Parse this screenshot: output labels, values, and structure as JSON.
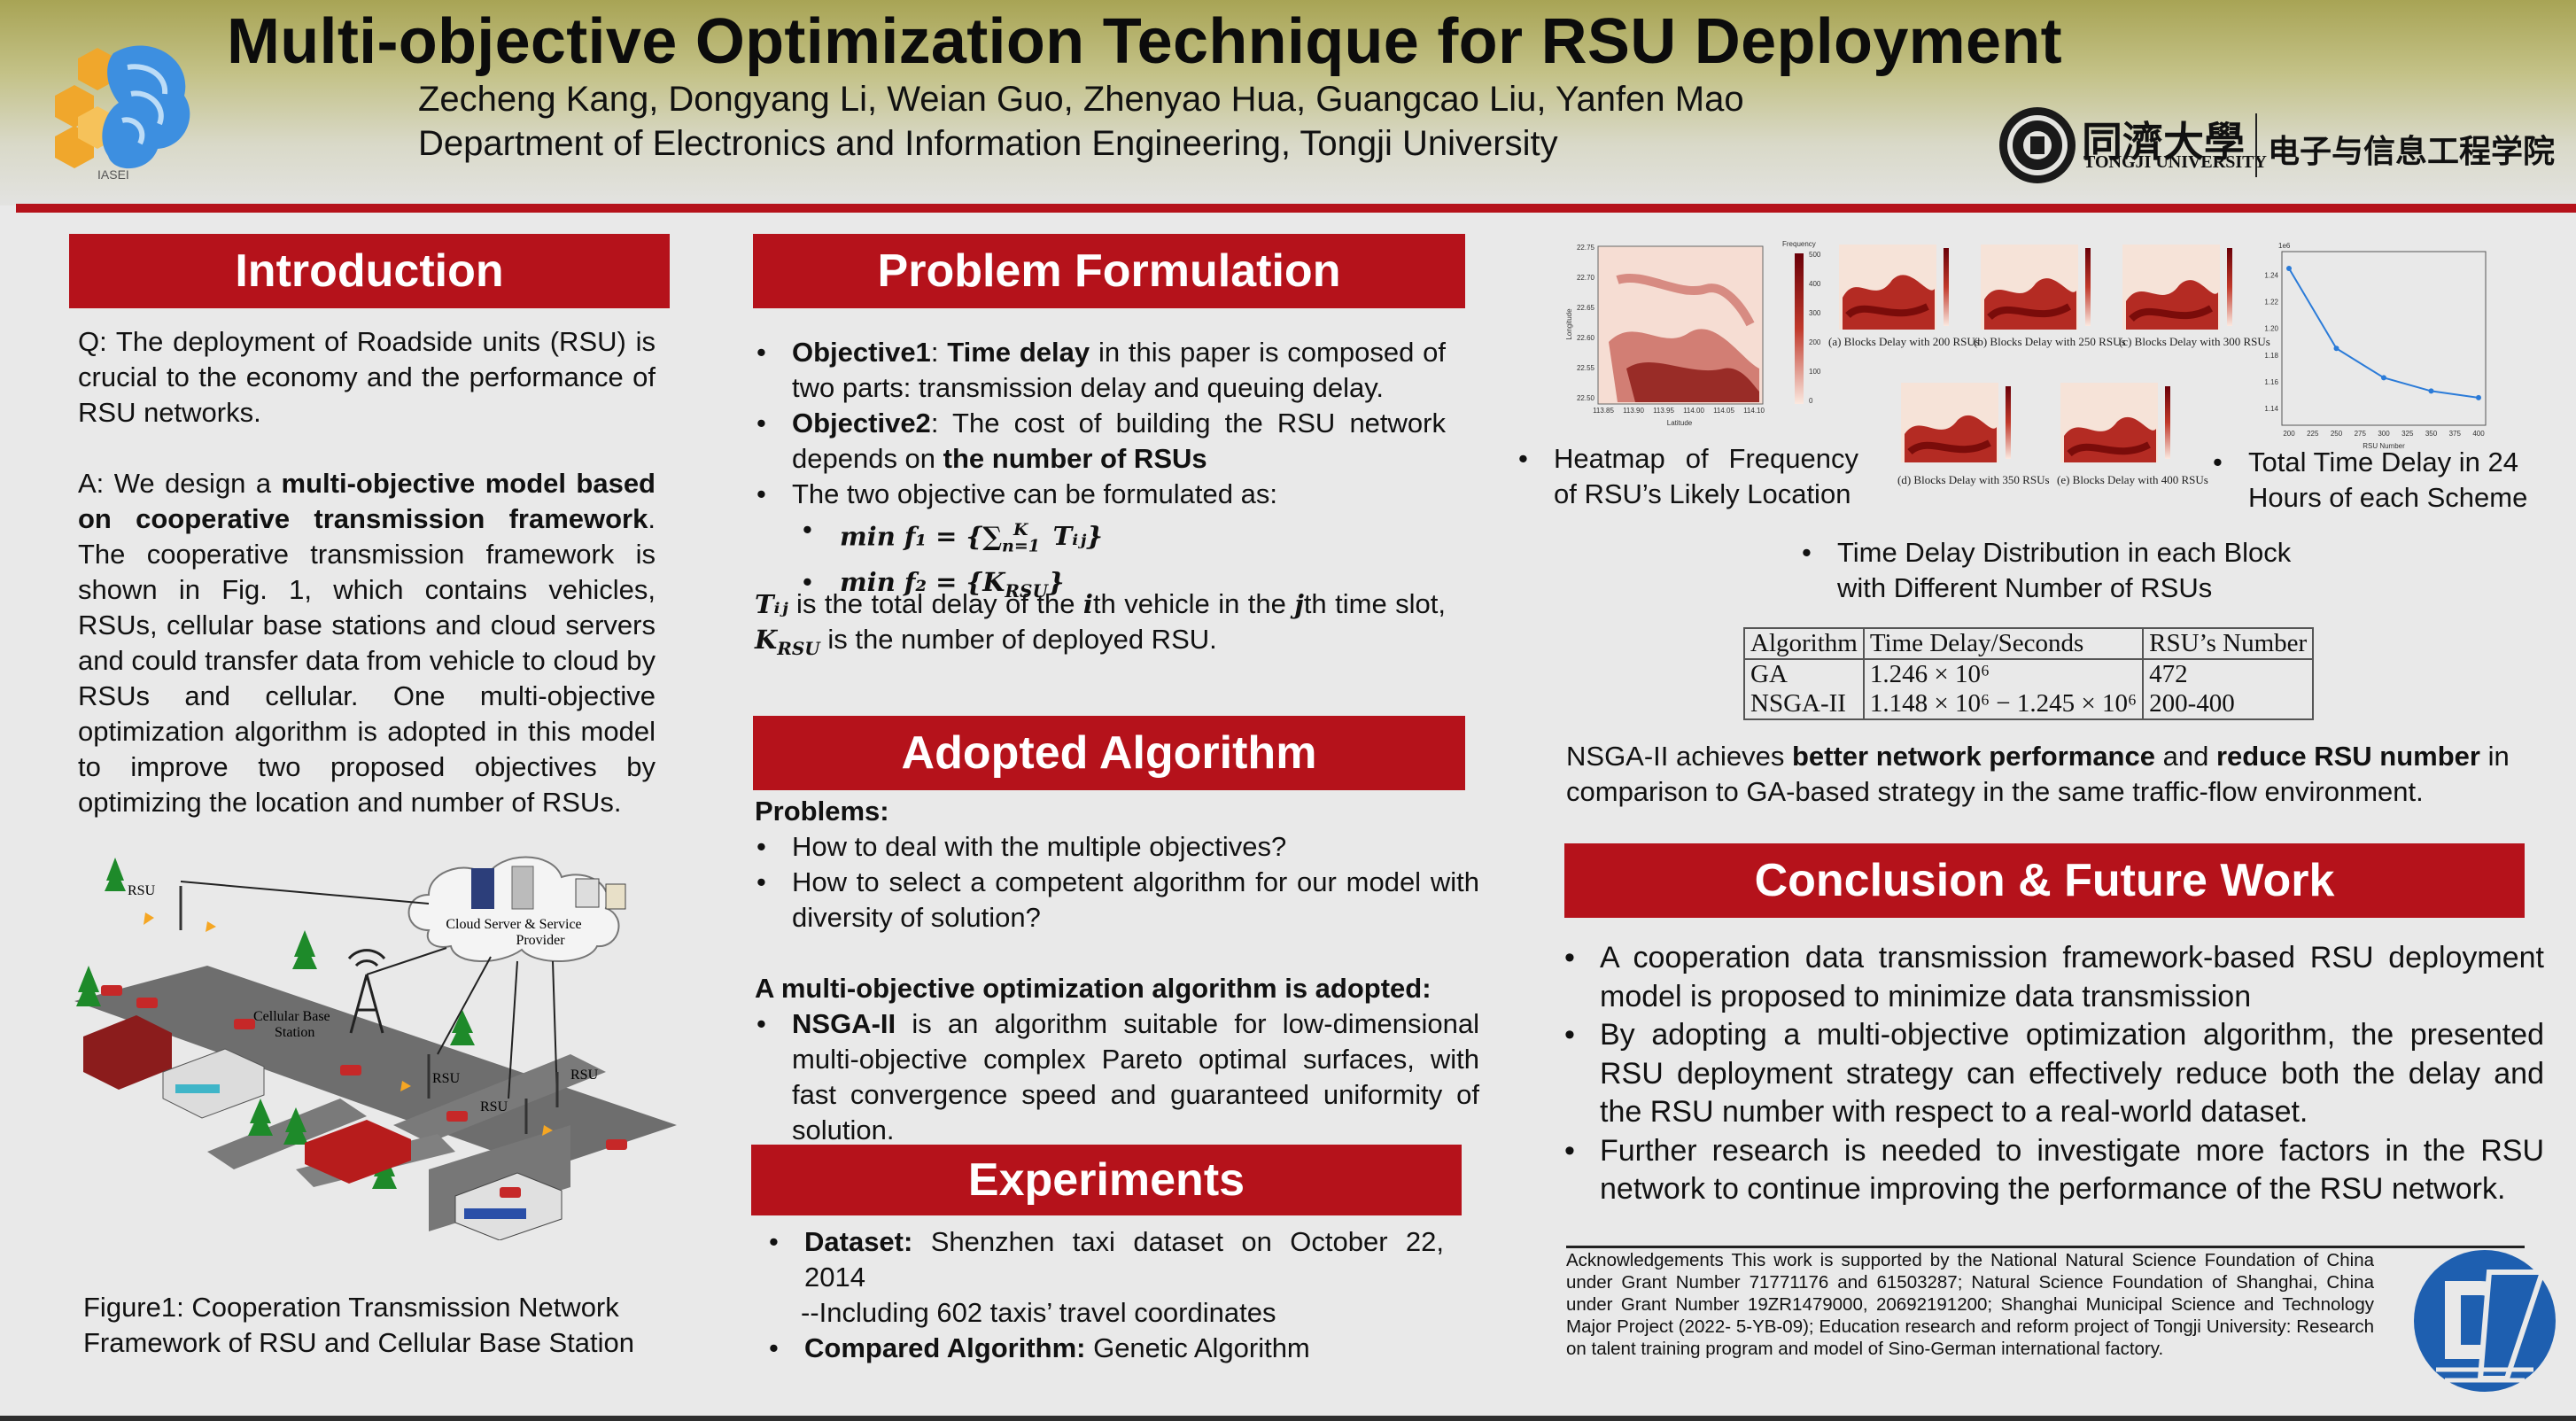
{
  "header": {
    "title": "Multi-objective Optimization Technique for RSU Deployment",
    "authors": "Zecheng Kang, Dongyang Li, Weian Guo, Zhenyao Hua, Guangcao Liu, Yanfen Mao",
    "department": "Department of Electronics and Information Engineering, Tongji University",
    "left_logo_text": "IASEI",
    "tongji_cn": "同濟大學",
    "tongji_en": "TONGJI UNIVERSITY",
    "school_cn": "电子与信息工程学院"
  },
  "introduction": {
    "heading": "Introduction",
    "q": "Q: The deployment of Roadside units (RSU) is crucial to the economy and the performance of RSU networks.",
    "a_prefix": "A: We design a ",
    "a_bold": "multi-objective model based on cooperative transmission framework",
    "a_rest": ". The cooperative transmission framework is shown in Fig. 1, which contains vehicles, RSUs, cellular base stations and cloud servers and could transfer data from vehicle to cloud by RSUs and cellular. One multi-objective optimization algorithm is adopted in this model to improve two proposed objectives by optimizing the location and number of RSUs.",
    "figure_caption": "Figure1: Cooperation Transmission Network Framework of RSU and Cellular Base Station",
    "figure_labels": {
      "cloud": "Cloud Server & Service",
      "provider": "Provider",
      "cellular": "Cellular Base",
      "station": "Station",
      "rsu": "RSU"
    }
  },
  "problem": {
    "heading": "Problem Formulation",
    "obj1_label": "Objective1",
    "obj1_sep": ": ",
    "obj1_bold": "Time delay",
    "obj1_rest": " in this paper is composed of two parts: transmission delay and queuing delay.",
    "obj2_label": "Objective2",
    "obj2_rest": ": The cost of building the RSU network depends on ",
    "obj2_bold": "the number of RSUs",
    "formulated": "The two objective can be formulated as:",
    "f1_lhs": "min f₁ = {",
    "f1_sum": "∑",
    "f1_sup": "K",
    "f1_sub": "n=1",
    "f1_rhs": " Tᵢⱼ}",
    "f2": "min f₂ = {K",
    "f2_sub": "RSU",
    "f2_close": "}",
    "def_t": "Tᵢⱼ",
    "def_mid1": " is the total delay of the ",
    "def_i": "i",
    "def_mid2": "th vehicle in the ",
    "def_j": "j",
    "def_mid3": "th time slot, ",
    "def_k": "K",
    "def_k_sub": "RSU",
    "def_end": " is the number of deployed RSU."
  },
  "algorithm": {
    "heading": "Adopted Algorithm",
    "problems_label": "Problems:",
    "problems": [
      "How to deal with the multiple objectives?",
      "How to select a competent algorithm for our model with diversity of solution?"
    ],
    "adopted_label": "A multi-objective optimization algorithm is adopted:",
    "nsga_bold": "NSGA-II",
    "nsga_rest": " is an algorithm suitable for low-dimensional multi-objective complex Pareto optimal surfaces, with fast convergence speed and guaranteed uniformity of solution."
  },
  "experiments": {
    "heading": "Experiments",
    "dataset_label": "Dataset:",
    "dataset_text": " Shenzhen taxi dataset on October 22, 2014",
    "dataset_sub": "--Including 602 taxis’ travel coordinates",
    "compared_label": "Compared Algorithm:",
    "compared_text": " Genetic Algorithm"
  },
  "results": {
    "fig_labels": {
      "a": "(a) Blocks Delay with 200 RSUs",
      "b": "(b) Blocks Delay with 250 RSUs",
      "c": "(c) Blocks Delay with 300 RSUs",
      "d": "(d) Blocks Delay with 350 RSUs",
      "e": "(e) Blocks Delay with 400 RSUs",
      "freq": "Frequency",
      "lat": "Latitude",
      "lon": "Longitude",
      "rsu_number": "RSU Number",
      "exp": "1e6"
    },
    "heat_lat_ticks": [
      "22.75",
      "22.70",
      "22.65",
      "22.60",
      "22.55",
      "22.50"
    ],
    "heat_lon_ticks": [
      "113.85",
      "113.90",
      "113.95",
      "114.00",
      "114.05",
      "114.10"
    ],
    "freq_ticks": [
      "500",
      "400",
      "300",
      "200",
      "100",
      "0"
    ],
    "line_y_ticks": [
      "1.24",
      "1.22",
      "1.20",
      "1.18",
      "1.16",
      "1.14"
    ],
    "bullet_heatmap": "Heatmap of Frequency of RSU’s Likely Location",
    "bullet_total": "Total Time Delay in 24 Hours of each Scheme",
    "bullet_dist": "Time Delay Distribution in each Block with Different Number of RSUs",
    "table": {
      "headers": [
        "Algorithm",
        "Time Delay/Seconds",
        "RSU’s Number"
      ],
      "rows": [
        [
          "GA",
          "1.246 × 10⁶",
          "472"
        ],
        [
          "NSGA-II",
          "1.148 × 10⁶ − 1.245 × 10⁶",
          "200-400"
        ]
      ]
    },
    "summary_pre": "NSGA-II achieves ",
    "summary_b1": "better network performance",
    "summary_mid": " and ",
    "summary_b2": "reduce RSU number",
    "summary_post": " in comparison to GA-based strategy in the same traffic-flow environment."
  },
  "chart_data": {
    "type": "line",
    "title": "",
    "xlabel": "RSU Number",
    "ylabel": "",
    "x": [
      200,
      250,
      300,
      350,
      400
    ],
    "x_ticks": [
      200,
      225,
      250,
      275,
      300,
      325,
      350,
      375,
      400
    ],
    "series": [
      {
        "values": [
          1.245,
          1.185,
          1.163,
          1.153,
          1.148
        ]
      }
    ],
    "y_scale_label": "1e6",
    "ylim": [
      1.13,
      1.255
    ],
    "color": "#2b7bd8"
  },
  "conclusion": {
    "heading": "Conclusion & Future Work",
    "items": [
      "A cooperation data transmission framework-based RSU deployment model is proposed to minimize data transmission",
      "By adopting a multi-objective optimization algorithm, the presented RSU deployment strategy can effectively reduce both the delay and the RSU number with respect to a real-world dataset.",
      "Further research is needed to investigate more factors in the RSU network to continue improving the performance of the RSU network."
    ]
  },
  "acknowledgement": "Acknowledgements This work is supported by the National Natural Science Foundation of China under Grant Number 71771176 and 61503287; Natural Science Foundation of Shanghai, China under Grant Number 19ZR1479000, 20692191200; Shanghai Municipal Science and Technology Major Project (2022- 5-YB-09); Education research and reform project of Tongji University: Research on talent training program and model of Sino-German international factory.",
  "colors": {
    "accent_red": "#b5121b",
    "header_olive": "#a8a455",
    "line_blue": "#2b7bd8"
  }
}
